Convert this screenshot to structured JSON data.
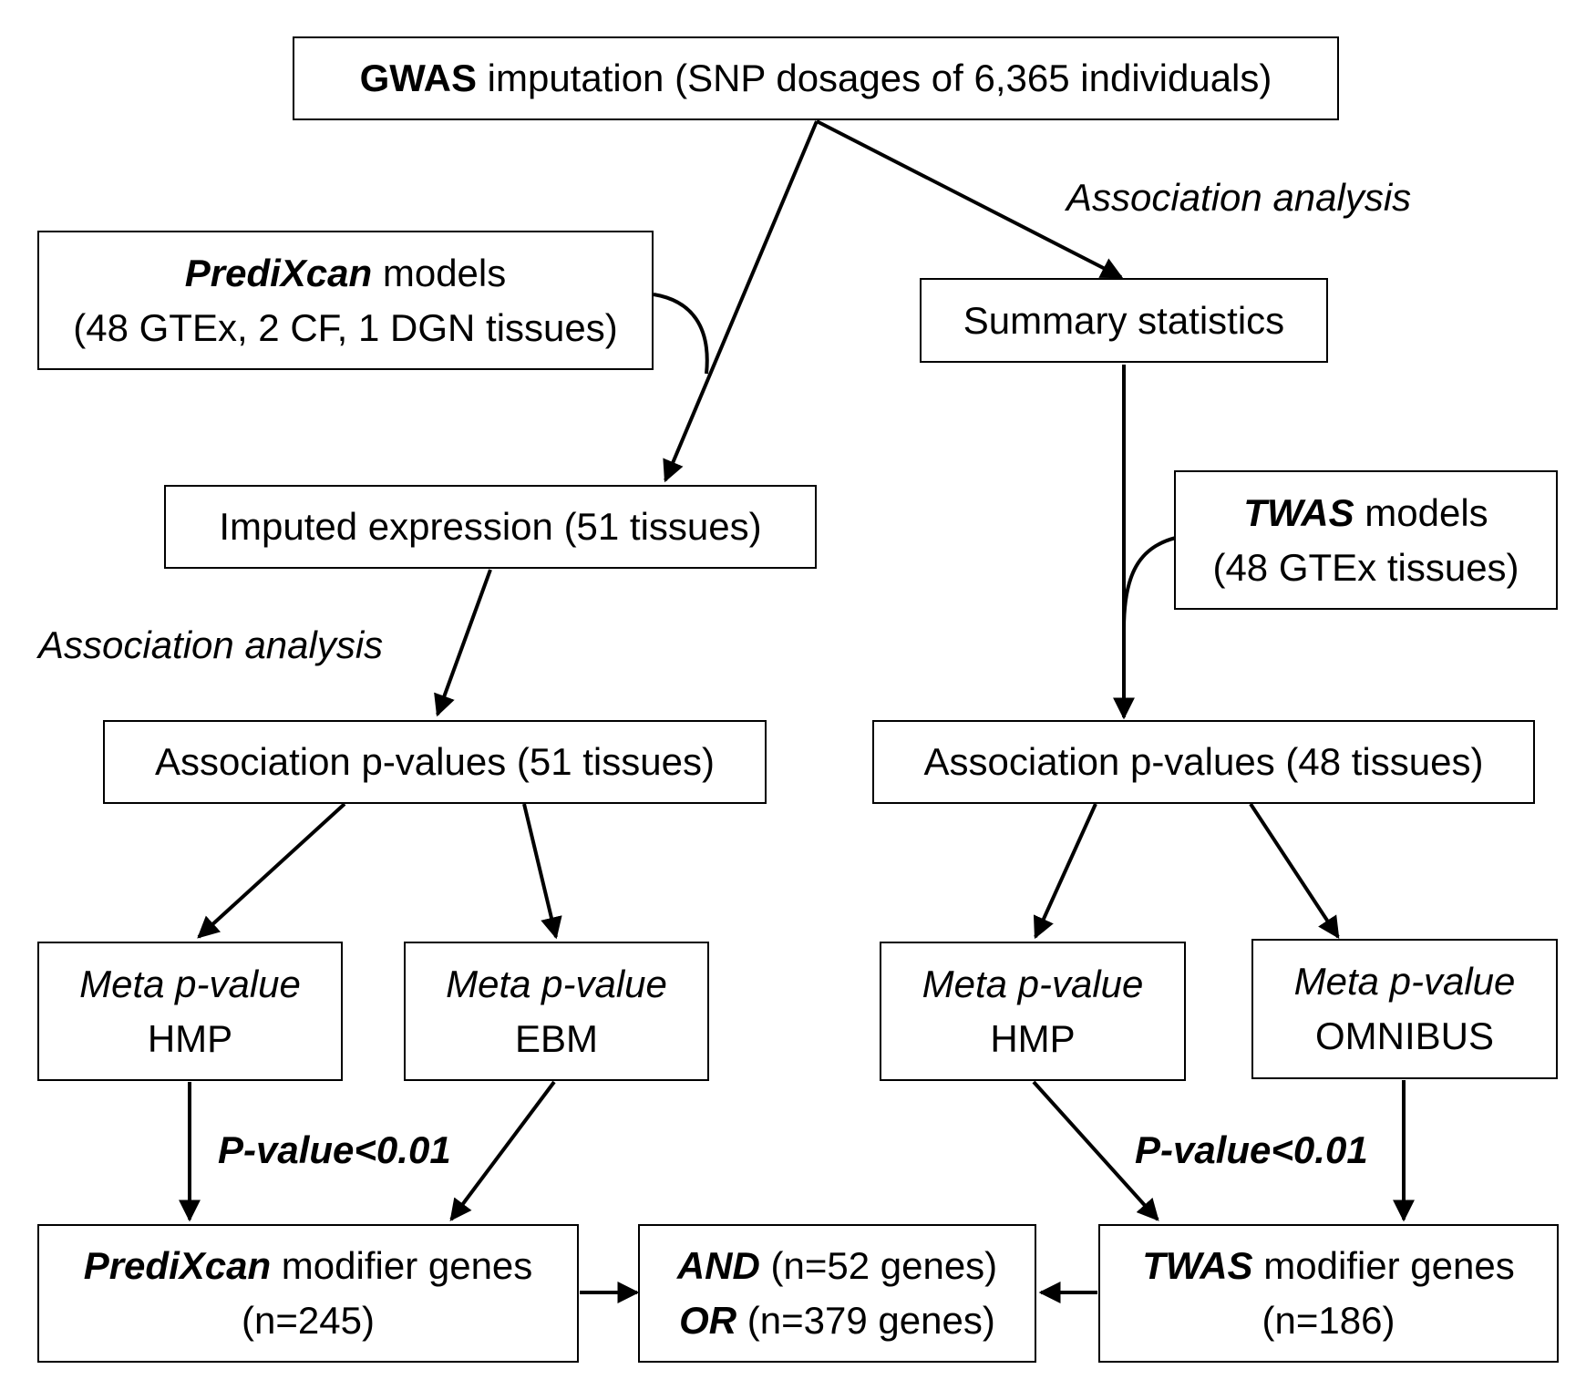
{
  "gwas": {
    "bold": "GWAS",
    "rest": " imputation (SNP dosages of 6,365 individuals)"
  },
  "assoc_label": "Association analysis",
  "predixcan_models": {
    "bold": "PrediXcan",
    "rest": " models",
    "line2": "(48 GTEx, 2 CF, 1 DGN tissues)"
  },
  "summary_stats": "Summary statistics",
  "imputed_expr": "Imputed expression (51 tissues)",
  "twas_models": {
    "bold": "TWAS",
    "rest": " models",
    "line2": "(48 GTEx tissues)"
  },
  "assoc_p_left": "Association p-values (51 tissues)",
  "assoc_p_right": "Association p-values (48 tissues)",
  "meta": {
    "line1": "Meta p-value",
    "hmp": "HMP",
    "ebm": "EBM",
    "omnibus": "OMNIBUS"
  },
  "threshold": "P-value<0.01",
  "predixcan_genes": {
    "bold": "PrediXcan",
    "rest": " modifier genes",
    "line2": "(n=245)"
  },
  "combined": {
    "and_bold": "AND",
    "and_rest": " (n=52 genes)",
    "or_bold": "OR",
    "or_rest": " (n=379 genes)"
  },
  "twas_genes": {
    "bold": "TWAS",
    "rest": " modifier genes",
    "line2": "(n=186)"
  }
}
